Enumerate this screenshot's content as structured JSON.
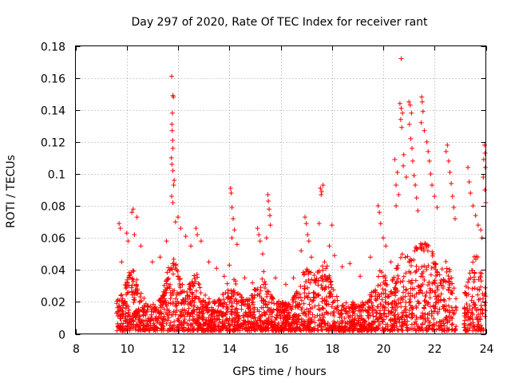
{
  "chart_data": {
    "type": "scatter",
    "title": "Day 297 of 2020, Rate Of TEC Index for receiver rant",
    "xlabel": "GPS time / hours",
    "ylabel": "ROTI / TECUs",
    "xlim": [
      8,
      24
    ],
    "ylim": [
      0,
      0.18
    ],
    "x_ticks": [
      8,
      10,
      12,
      14,
      16,
      18,
      20,
      22,
      24
    ],
    "x_tick_labels": [
      "8",
      "10",
      "12",
      "14",
      "16",
      "18",
      "20",
      "22",
      "24"
    ],
    "y_ticks": [
      0,
      0.02,
      0.04,
      0.06,
      0.08,
      0.1,
      0.12,
      0.14,
      0.16,
      0.18
    ],
    "y_tick_labels": [
      "0",
      "0.02",
      "0.04",
      "0.06",
      "0.08",
      "0.1",
      "0.12",
      "0.14",
      "0.16",
      "0.18"
    ],
    "grid": true,
    "marker": "+",
    "color": "#ff0000",
    "series": [
      {
        "name": "ROTI",
        "points": [
          [
            9.7,
            0.069
          ],
          [
            9.75,
            0.066
          ],
          [
            9.8,
            0.045
          ],
          [
            10.0,
            0.063
          ],
          [
            10.05,
            0.058
          ],
          [
            10.2,
            0.076
          ],
          [
            10.25,
            0.078
          ],
          [
            10.3,
            0.062
          ],
          [
            10.4,
            0.073
          ],
          [
            10.55,
            0.055
          ],
          [
            11.0,
            0.045
          ],
          [
            11.3,
            0.048
          ],
          [
            11.55,
            0.058
          ],
          [
            11.75,
            0.161
          ],
          [
            11.8,
            0.149
          ],
          [
            11.82,
            0.148
          ],
          [
            11.78,
            0.138
          ],
          [
            11.76,
            0.131
          ],
          [
            11.77,
            0.127
          ],
          [
            11.79,
            0.121
          ],
          [
            11.8,
            0.116
          ],
          [
            11.74,
            0.11
          ],
          [
            11.76,
            0.106
          ],
          [
            11.8,
            0.102
          ],
          [
            11.85,
            0.096
          ],
          [
            11.83,
            0.093
          ],
          [
            11.75,
            0.086
          ],
          [
            11.8,
            0.082
          ],
          [
            11.9,
            0.07
          ],
          [
            12.0,
            0.073
          ],
          [
            12.1,
            0.066
          ],
          [
            12.3,
            0.061
          ],
          [
            12.5,
            0.055
          ],
          [
            12.7,
            0.066
          ],
          [
            12.75,
            0.062
          ],
          [
            12.9,
            0.058
          ],
          [
            13.2,
            0.045
          ],
          [
            13.5,
            0.041
          ],
          [
            13.8,
            0.036
          ],
          [
            14.05,
            0.091
          ],
          [
            14.07,
            0.088
          ],
          [
            14.1,
            0.079
          ],
          [
            14.15,
            0.072
          ],
          [
            14.2,
            0.065
          ],
          [
            14.1,
            0.06
          ],
          [
            14.3,
            0.056
          ],
          [
            14.0,
            0.043
          ],
          [
            14.6,
            0.035
          ],
          [
            14.9,
            0.032
          ],
          [
            15.1,
            0.066
          ],
          [
            15.15,
            0.062
          ],
          [
            15.2,
            0.058
          ],
          [
            15.3,
            0.05
          ],
          [
            15.5,
            0.087
          ],
          [
            15.52,
            0.083
          ],
          [
            15.55,
            0.078
          ],
          [
            15.58,
            0.074
          ],
          [
            15.6,
            0.068
          ],
          [
            15.45,
            0.06
          ],
          [
            15.8,
            0.035
          ],
          [
            16.2,
            0.031
          ],
          [
            16.5,
            0.035
          ],
          [
            16.8,
            0.052
          ],
          [
            16.95,
            0.073
          ],
          [
            17.0,
            0.069
          ],
          [
            17.05,
            0.062
          ],
          [
            17.1,
            0.058
          ],
          [
            17.2,
            0.048
          ],
          [
            17.55,
            0.091
          ],
          [
            17.6,
            0.089
          ],
          [
            17.65,
            0.093
          ],
          [
            17.58,
            0.087
          ],
          [
            17.5,
            0.069
          ],
          [
            17.9,
            0.055
          ],
          [
            18.0,
            0.068
          ],
          [
            18.1,
            0.049
          ],
          [
            18.4,
            0.042
          ],
          [
            18.7,
            0.044
          ],
          [
            19.1,
            0.036
          ],
          [
            19.5,
            0.048
          ],
          [
            19.8,
            0.08
          ],
          [
            19.85,
            0.076
          ],
          [
            19.9,
            0.069
          ],
          [
            20.0,
            0.06
          ],
          [
            20.1,
            0.055
          ],
          [
            20.3,
            0.045
          ],
          [
            20.45,
            0.109
          ],
          [
            20.55,
            0.101
          ],
          [
            20.5,
            0.093
          ],
          [
            20.6,
            0.087
          ],
          [
            20.5,
            0.08
          ],
          [
            20.7,
            0.172
          ],
          [
            20.65,
            0.144
          ],
          [
            20.7,
            0.141
          ],
          [
            20.75,
            0.138
          ],
          [
            20.68,
            0.134
          ],
          [
            20.72,
            0.129
          ],
          [
            20.8,
            0.112
          ],
          [
            20.78,
            0.105
          ],
          [
            20.9,
            0.098
          ],
          [
            21.0,
            0.145
          ],
          [
            21.05,
            0.143
          ],
          [
            21.1,
            0.138
          ],
          [
            21.02,
            0.131
          ],
          [
            21.07,
            0.122
          ],
          [
            21.12,
            0.116
          ],
          [
            21.15,
            0.108
          ],
          [
            21.2,
            0.099
          ],
          [
            21.25,
            0.093
          ],
          [
            21.3,
            0.085
          ],
          [
            21.35,
            0.077
          ],
          [
            21.5,
            0.148
          ],
          [
            21.52,
            0.145
          ],
          [
            21.55,
            0.139
          ],
          [
            21.48,
            0.132
          ],
          [
            21.6,
            0.127
          ],
          [
            21.7,
            0.12
          ],
          [
            21.75,
            0.114
          ],
          [
            21.8,
            0.108
          ],
          [
            21.85,
            0.1
          ],
          [
            21.9,
            0.093
          ],
          [
            22.0,
            0.086
          ],
          [
            22.1,
            0.079
          ],
          [
            22.5,
            0.118
          ],
          [
            22.45,
            0.114
          ],
          [
            22.55,
            0.108
          ],
          [
            22.6,
            0.101
          ],
          [
            22.65,
            0.094
          ],
          [
            22.7,
            0.086
          ],
          [
            22.75,
            0.079
          ],
          [
            22.8,
            0.072
          ],
          [
            23.3,
            0.104
          ],
          [
            23.35,
            0.095
          ],
          [
            23.4,
            0.088
          ],
          [
            23.5,
            0.08
          ],
          [
            23.6,
            0.074
          ],
          [
            23.7,
            0.068
          ],
          [
            23.8,
            0.065
          ],
          [
            23.85,
            0.06
          ],
          [
            23.95,
            0.118
          ],
          [
            23.97,
            0.113
          ],
          [
            23.92,
            0.109
          ],
          [
            23.98,
            0.104
          ],
          [
            23.9,
            0.098
          ],
          [
            23.96,
            0.09
          ],
          [
            24.0,
            0.082
          ]
        ]
      }
    ],
    "dense_band": {
      "description": "many additional points forming a near-continuous band",
      "x_range": [
        9.6,
        24.0
      ],
      "y_range": [
        0.0,
        0.045
      ]
    }
  }
}
